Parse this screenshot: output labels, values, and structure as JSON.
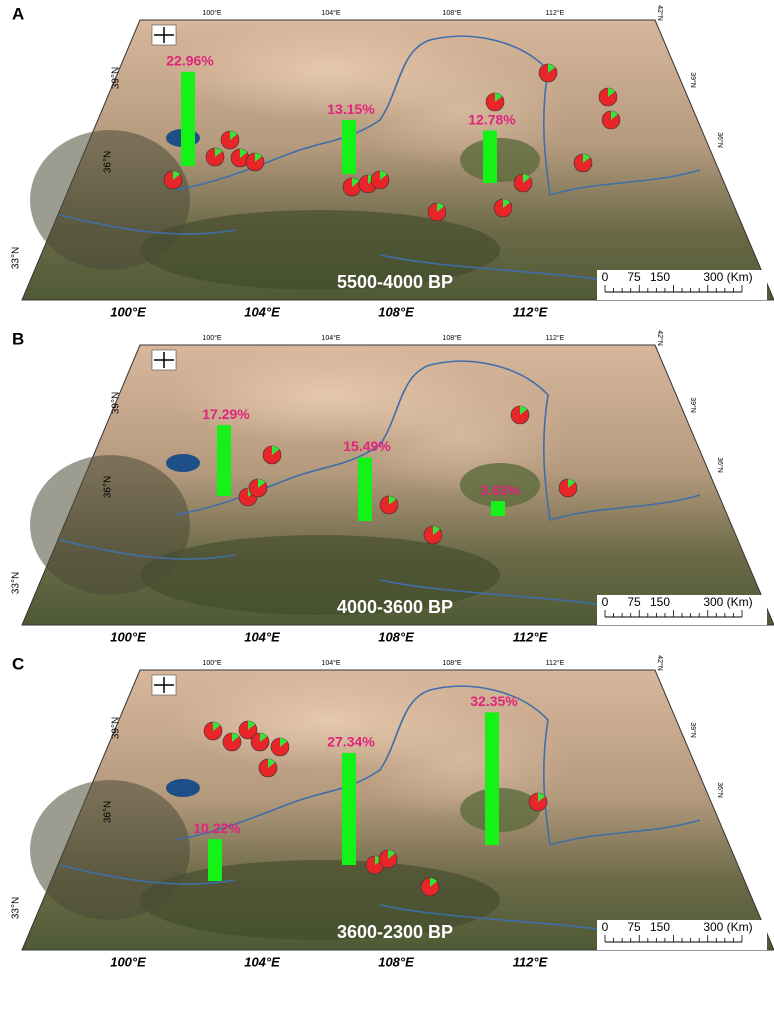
{
  "panels": [
    {
      "label": "A",
      "period": "5500-4000 BP",
      "bars": [
        {
          "value": 22.96,
          "label": "22.96%"
        },
        {
          "value": 13.15,
          "label": "13.15%"
        },
        {
          "value": 12.78,
          "label": "12.78%"
        }
      ]
    },
    {
      "label": "B",
      "period": "4000-3600 BP",
      "bars": [
        {
          "value": 17.29,
          "label": "17.29%"
        },
        {
          "value": 15.49,
          "label": "15.49%"
        },
        {
          "value": 3.63,
          "label": "3.63%"
        }
      ]
    },
    {
      "label": "C",
      "period": "3600-2300 BP",
      "bars": [
        {
          "value": 10.22,
          "label": "10.22%"
        },
        {
          "value": 27.34,
          "label": "27.34%"
        },
        {
          "value": 32.35,
          "label": "32.35%"
        }
      ]
    }
  ],
  "axes": {
    "bottom": [
      "100°E",
      "104°E",
      "108°E",
      "112°E"
    ],
    "left": [
      "33°N",
      "36°N",
      "39°N"
    ],
    "top": [
      "100°E",
      "104°E",
      "108°E",
      "112°E"
    ],
    "right": [
      "36°N",
      "39°N",
      "42°N"
    ]
  },
  "scale_bar": [
    "0",
    "75",
    "150",
    "300 (Km)"
  ]
}
